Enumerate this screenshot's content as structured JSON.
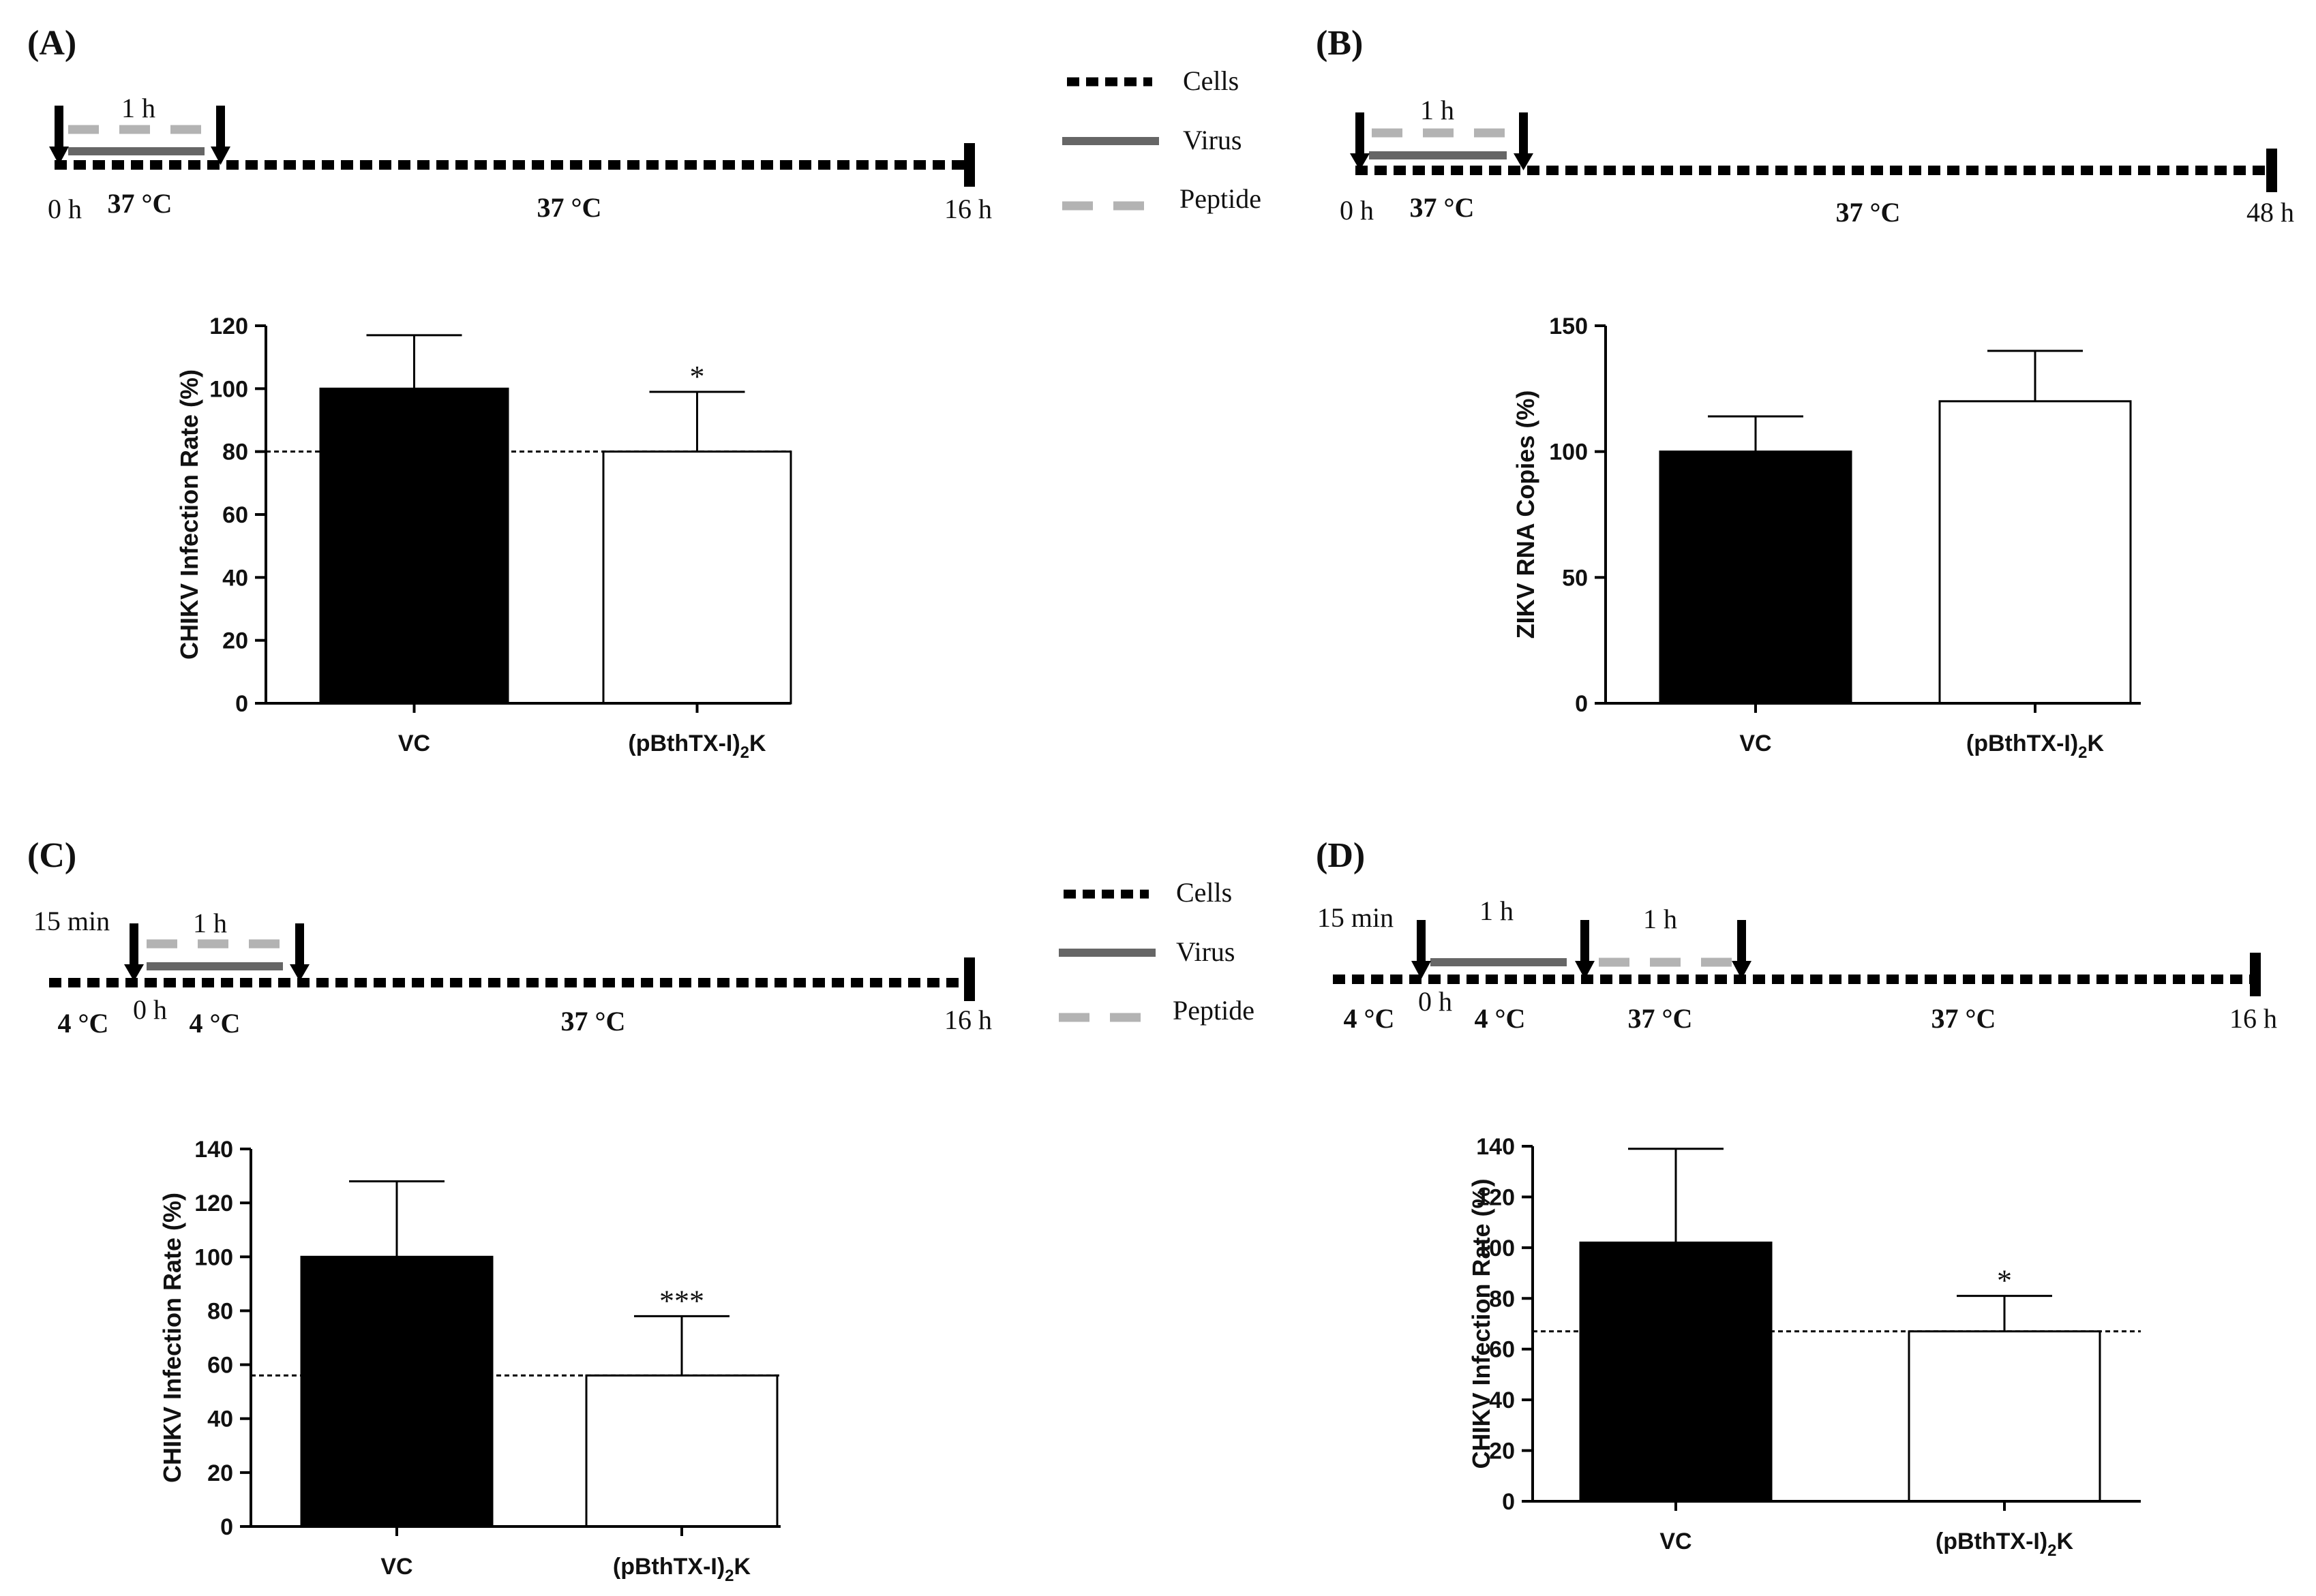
{
  "legend_top": {
    "cells": "Cells",
    "virus": "Virus",
    "peptide": "Peptide"
  },
  "legend_bottom": {
    "cells": "Cells",
    "virus": "Virus",
    "peptide": "Peptide"
  },
  "colors": {
    "virus": "#666666",
    "peptide": "#b3b3b3",
    "bar_vc": "#000000",
    "bar_peptide": "#ffffff"
  },
  "panels": {
    "A": {
      "label": "(A)",
      "timeline": {
        "duration": "1 h",
        "t0": "0 h",
        "t0_temp": "37 °C",
        "mid_temp": "37 °C",
        "end": "16 h"
      }
    },
    "B": {
      "label": "(B)",
      "timeline": {
        "duration": "1 h",
        "t0": "0 h",
        "t0_temp": "37 °C",
        "mid_temp": "37 °C",
        "end": "48 h"
      }
    },
    "C": {
      "label": "(C)",
      "timeline": {
        "pre": "15 min",
        "duration": "1 h",
        "pre_temp": "4 °C",
        "t0": "0 h",
        "t0_temp": "4 °C",
        "mid_temp": "37 °C",
        "end": "16 h"
      }
    },
    "D": {
      "label": "(D)",
      "timeline": {
        "pre": "15 min",
        "duration1": "1 h",
        "duration2": "1 h",
        "pre_temp": "4 °C",
        "t0": "0 h",
        "t0_temp": "4 °C",
        "step2_temp": "37 °C",
        "mid_temp": "37 °C",
        "end": "16 h"
      }
    }
  },
  "chart_data": [
    {
      "panel": "A",
      "type": "bar",
      "categories": [
        "VC",
        "(pBthTX-I)2K"
      ],
      "values": [
        100,
        80
      ],
      "errors": [
        17,
        19
      ],
      "significance": [
        "",
        "*"
      ],
      "ylabel": "CHIKV Infection Rate (%)",
      "ylim": [
        0,
        120
      ],
      "yticks": [
        "0",
        "20",
        "40",
        "60",
        "80",
        "100",
        "120"
      ],
      "reference_line": 80
    },
    {
      "panel": "B",
      "type": "bar",
      "categories": [
        "VC",
        "(pBthTX-I)2K"
      ],
      "values": [
        100,
        120
      ],
      "errors": [
        14,
        20
      ],
      "significance": [
        "",
        ""
      ],
      "ylabel": "ZIKV RNA Copies (%)",
      "ylim": [
        0,
        150
      ],
      "yticks": [
        "0",
        "50",
        "100",
        "150"
      ],
      "reference_line": null
    },
    {
      "panel": "C",
      "type": "bar",
      "categories": [
        "VC",
        "(pBthTX-I)2K"
      ],
      "values": [
        100,
        56
      ],
      "errors": [
        28,
        22
      ],
      "significance": [
        "",
        "***"
      ],
      "ylabel": "CHIKV Infection Rate (%)",
      "ylim": [
        0,
        140
      ],
      "yticks": [
        "0",
        "20",
        "40",
        "60",
        "80",
        "100",
        "120",
        "140"
      ],
      "reference_line": 56
    },
    {
      "panel": "D",
      "type": "bar",
      "categories": [
        "VC",
        "(pBthTX-I)2K"
      ],
      "values": [
        102,
        67
      ],
      "errors": [
        37,
        14
      ],
      "significance": [
        "",
        "*"
      ],
      "ylabel": "CHIKV Infection Rate (%)",
      "ylim": [
        0,
        140
      ],
      "yticks": [
        "0",
        "20",
        "40",
        "60",
        "80",
        "100",
        "120",
        "140"
      ],
      "reference_line": 67
    }
  ]
}
